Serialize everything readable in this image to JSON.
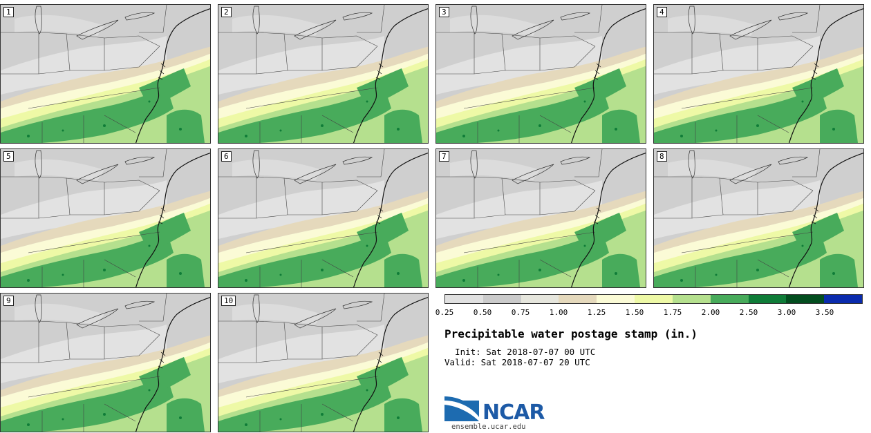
{
  "panels": [
    {
      "label": "1"
    },
    {
      "label": "2"
    },
    {
      "label": "3"
    },
    {
      "label": "4"
    },
    {
      "label": "5"
    },
    {
      "label": "6"
    },
    {
      "label": "7"
    },
    {
      "label": "8"
    },
    {
      "label": "9"
    },
    {
      "label": "10"
    }
  ],
  "legend": {
    "colors": [
      "#e1e1e1",
      "#cbcbcb",
      "#e6e6dd",
      "#e5d9bc",
      "#fbfbd6",
      "#eef9a6",
      "#b5e08e",
      "#48ab5b",
      "#0f7c38",
      "#034d1f",
      "#0a2bad"
    ],
    "ticks": [
      "0.25",
      "0.50",
      "0.75",
      "1.00",
      "1.25",
      "1.50",
      "1.75",
      "2.00",
      "2.50",
      "3.00",
      "3.50"
    ]
  },
  "title": "Precipitable water postage stamp (in.)",
  "init": "  Init: Sat 2018-07-07 00 UTC",
  "valid": "Valid: Sat 2018-07-07 20 UTC",
  "logo_text": "NCAR",
  "url": "ensemble.ucar.edu"
}
